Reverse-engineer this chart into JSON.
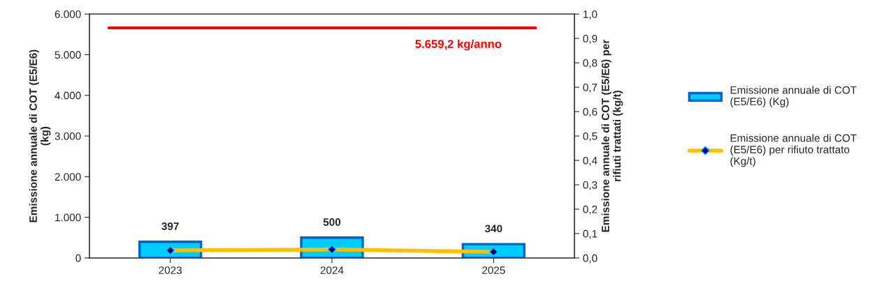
{
  "chart_data": {
    "type": "bar",
    "categories": [
      "2023",
      "2024",
      "2025"
    ],
    "ylabel": "Emissione annuale di COT (E5/E6)\n(kg)",
    "y2label": "Emissione annuale di COT (E5/E6) per\nrifiuti trattati (kg/t)",
    "series": [
      {
        "name": "Emissione annuale di COT\n(E5/E6) (Kg)",
        "color": "#00ccff",
        "values": [
          397,
          500,
          340
        ],
        "data_labels": true
      },
      {
        "name": "Emissione annuale di COT\n(E5/E6) per rifiuto trattato\n(Kg/t)",
        "type": "line",
        "axis": "y2",
        "color": "#ffc000",
        "marker": "diamond",
        "values": [
          0.031,
          0.035,
          0.025
        ]
      }
    ],
    "ylim": [
      0,
      6000
    ],
    "yticks": [
      {
        "value": 0,
        "label": "0"
      },
      {
        "value": 1000,
        "label": "1.000"
      },
      {
        "value": 2000,
        "label": "2.000"
      },
      {
        "value": 3000,
        "label": "3.000"
      },
      {
        "value": 4000,
        "label": "4.000"
      },
      {
        "value": 5000,
        "label": "5.000"
      },
      {
        "value": 6000,
        "label": "6.000"
      }
    ],
    "y2lim": [
      0,
      1
    ],
    "y2ticks": [
      {
        "value": 0,
        "label": "0,0"
      },
      {
        "value": 0.1,
        "label": "0,1"
      },
      {
        "value": 0.2,
        "label": "0,2"
      },
      {
        "value": 0.3,
        "label": "0,3"
      },
      {
        "value": 0.4,
        "label": "0,4"
      },
      {
        "value": 0.5,
        "label": "0,5"
      },
      {
        "value": 0.6,
        "label": "0,6"
      },
      {
        "value": 0.7,
        "label": "0,7"
      },
      {
        "value": 0.8,
        "label": "0,8"
      },
      {
        "value": 0.9,
        "label": "0,9"
      },
      {
        "value": 1,
        "label": "1,0"
      }
    ],
    "ref_lines": [
      {
        "axis": "y",
        "value": 5659.2,
        "label": "5.659,2 kg/anno",
        "color": "#ff0000"
      }
    ],
    "legend": "right",
    "grid": false
  }
}
